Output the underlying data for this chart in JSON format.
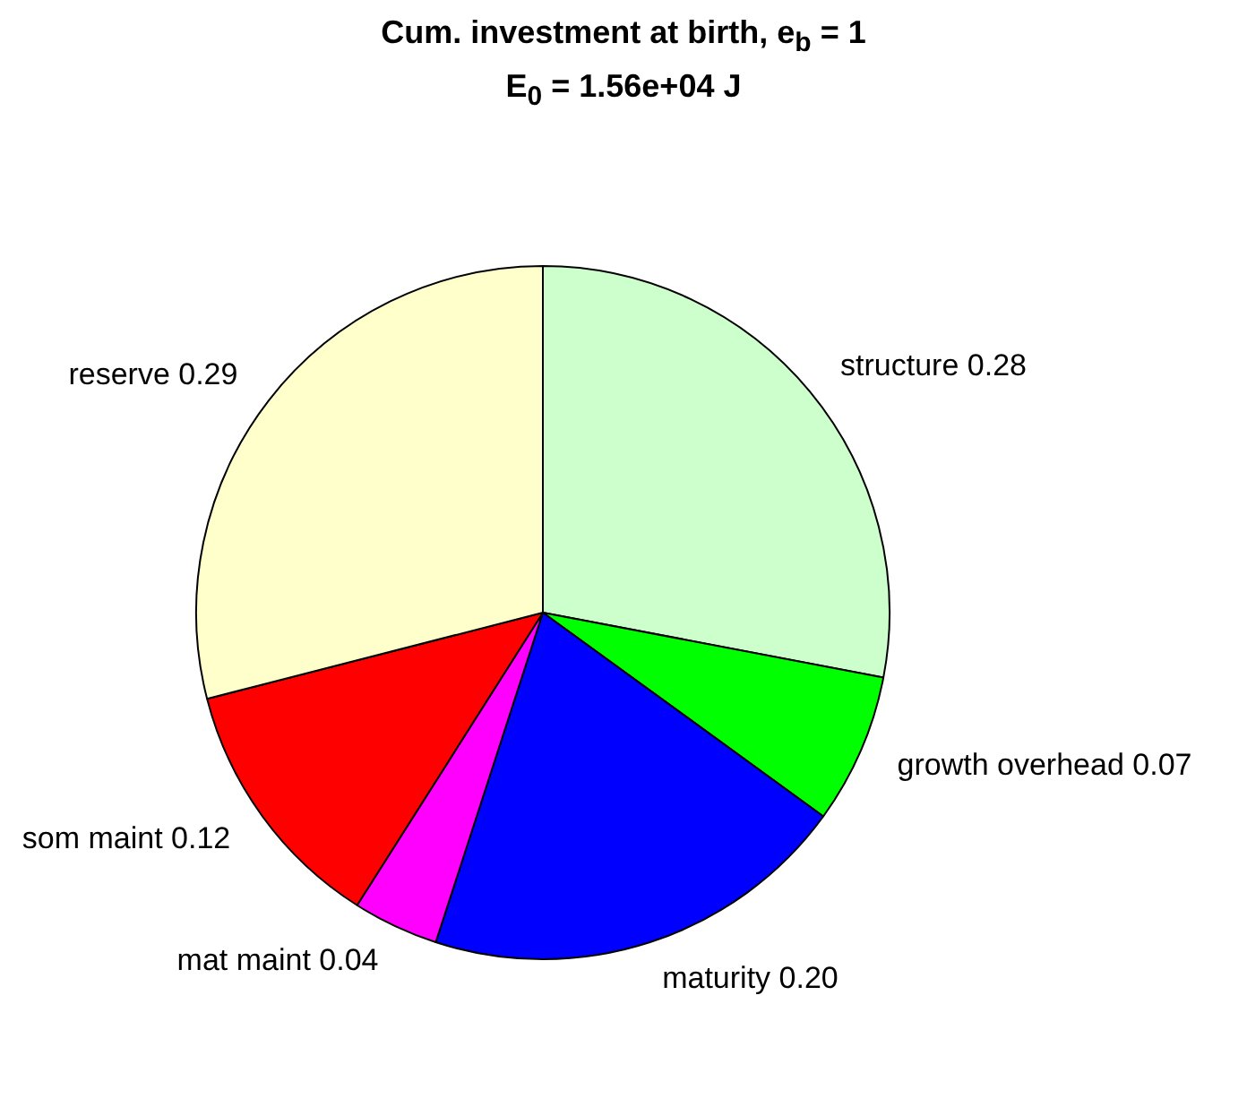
{
  "chart_data": {
    "type": "pie",
    "title": "Cum. investment at birth, e$_{b}$ = 1",
    "subtitle": "E$_{0}$ = 1.56e+04 J",
    "categories": [
      "structure",
      "growth overhead",
      "maturity",
      "mat maint",
      "som maint",
      "reserve"
    ],
    "values": [
      0.28,
      0.07,
      0.2,
      0.04,
      0.12,
      0.29
    ],
    "value_labels": [
      "0.28",
      "0.07",
      "0.20",
      "0.04",
      "0.12",
      "0.29"
    ],
    "colors": [
      "#ccffcc",
      "#00ff00",
      "#0000ff",
      "#ff00ff",
      "#ff0000",
      "#ffffcc"
    ],
    "legend": false
  }
}
